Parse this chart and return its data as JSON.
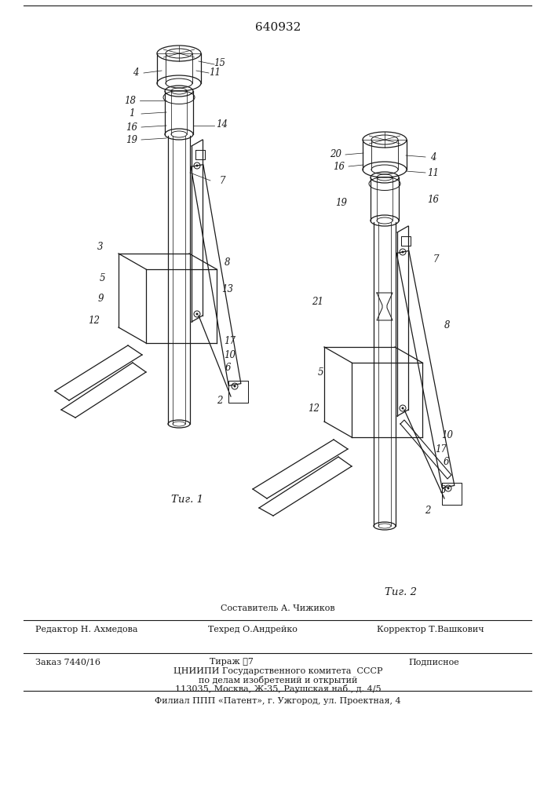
{
  "patent_number": "640932",
  "background_color": "#ffffff",
  "fig_caption_1": "Τиг. 1",
  "fig_caption_2": "Τиг. 2",
  "footer_line0_center": "Составитель А. Чижиков",
  "footer_line1_left": "Редактор Н. Ахмедова",
  "footer_line1_center": "Техред О.Андрейко",
  "footer_line1_right": "Корректор Т.Вашкович",
  "footer_block_left": "Заказ 7440/16",
  "footer_block_center": "Тираж ѧ7",
  "footer_block_right": "Подписное",
  "footer_block2": "ЦНИИПИ Государственного комитета  СССР",
  "footer_block3": "по делам изобретений и открытий",
  "footer_block4": "113035, Москва, Ж-35, Раушская наб., д. 4/5",
  "footer_last": "Филиал ППП «Патент», г. Ужгород, ул. Проектная, 4",
  "text_color": "#1a1a1a",
  "line_color": "#1a1a1a"
}
